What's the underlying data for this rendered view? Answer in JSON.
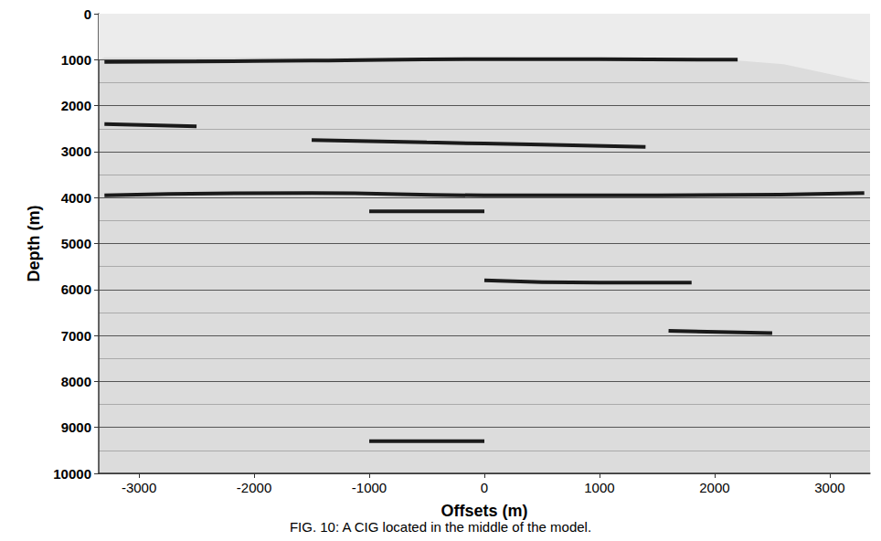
{
  "chart_data": {
    "type": "line",
    "caption": "FIG. 10: A CIG located in the middle of the model.",
    "x_label": "Offsets (m)",
    "y_label": "Depth (m)",
    "xlim": [
      -3350,
      3350
    ],
    "xticks": [
      -3000,
      -2000,
      -1000,
      0,
      1000,
      2000,
      3000
    ],
    "ylim": [
      0,
      10000
    ],
    "yticks": [
      0,
      1000,
      2000,
      3000,
      4000,
      5000,
      6000,
      7000,
      8000,
      9000,
      10000
    ],
    "grid": true,
    "color": "#1a1a1a",
    "no_data": {
      "x": [
        -3350,
        -3300,
        -2000,
        0,
        2000,
        2600,
        3350
      ],
      "values": [
        1000,
        950,
        950,
        950,
        980,
        1100,
        1500
      ],
      "color": "#ececec"
    },
    "series": [
      {
        "x": [
          -3300,
          -2500,
          -1500,
          0,
          1000,
          2200
        ],
        "values": [
          1050,
          1040,
          1020,
          990,
          990,
          1000
        ]
      },
      {
        "x": [
          -3300,
          -2500
        ],
        "values": [
          2400,
          2450
        ]
      },
      {
        "x": [
          -1500,
          -500,
          500,
          1400
        ],
        "values": [
          2750,
          2800,
          2850,
          2900
        ]
      },
      {
        "x": [
          -3300,
          -1500,
          0,
          1500,
          3300
        ],
        "values": [
          3950,
          3900,
          3950,
          3950,
          3900
        ]
      },
      {
        "x": [
          -1000,
          0
        ],
        "values": [
          4300,
          4300
        ]
      },
      {
        "x": [
          0,
          1000,
          1800
        ],
        "values": [
          5800,
          5850,
          5850
        ]
      },
      {
        "x": [
          1600,
          2500
        ],
        "values": [
          6900,
          6950
        ]
      },
      {
        "x": [
          -1000,
          0
        ],
        "values": [
          9300,
          9300
        ]
      }
    ]
  }
}
